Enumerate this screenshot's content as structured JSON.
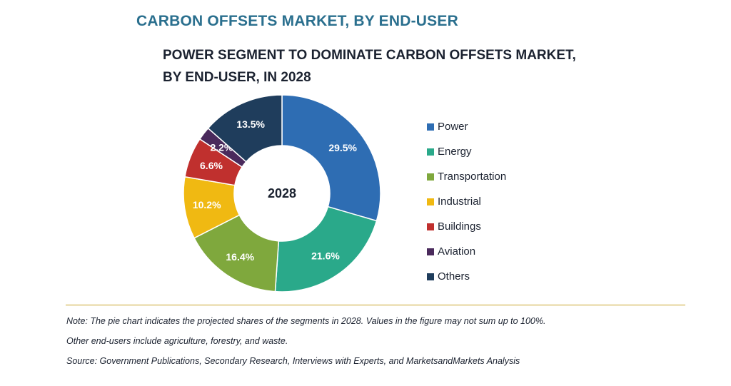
{
  "header": {
    "text": "CARBON OFFSETS MARKET, BY END-USER"
  },
  "chart_data": {
    "type": "pie",
    "title": "POWER SEGMENT TO DOMINATE CARBON OFFSETS MARKET, BY END-USER, IN 2028",
    "title_lines": [
      "POWER SEGMENT TO DOMINATE CARBON OFFSETS MARKET,",
      "BY END-USER, IN 2028"
    ],
    "center_label": "2028",
    "donut": true,
    "legend_position": "right",
    "categories": [
      "Power",
      "Energy",
      "Transportation",
      "Industrial",
      "Buildings",
      "Aviation",
      "Others"
    ],
    "values": [
      29.5,
      21.6,
      16.4,
      10.2,
      6.6,
      2.2,
      13.5
    ],
    "value_labels": [
      "29.5%",
      "21.6%",
      "16.4%",
      "10.2%",
      "6.6%",
      "2.2%",
      "13.5%"
    ],
    "colors": [
      "#2e6db3",
      "#2aa98a",
      "#7fa83d",
      "#f0b912",
      "#c0302e",
      "#4a2a5c",
      "#1f3d5c"
    ]
  },
  "notes": [
    "Note: The pie chart indicates the projected shares of the segments in 2028. Values in the figure may not sum up to 100%.",
    "Other end-users include agriculture, forestry, and waste.",
    "Source: Government Publications, Secondary Research, Interviews with Experts, and MarketsandMarkets Analysis"
  ]
}
